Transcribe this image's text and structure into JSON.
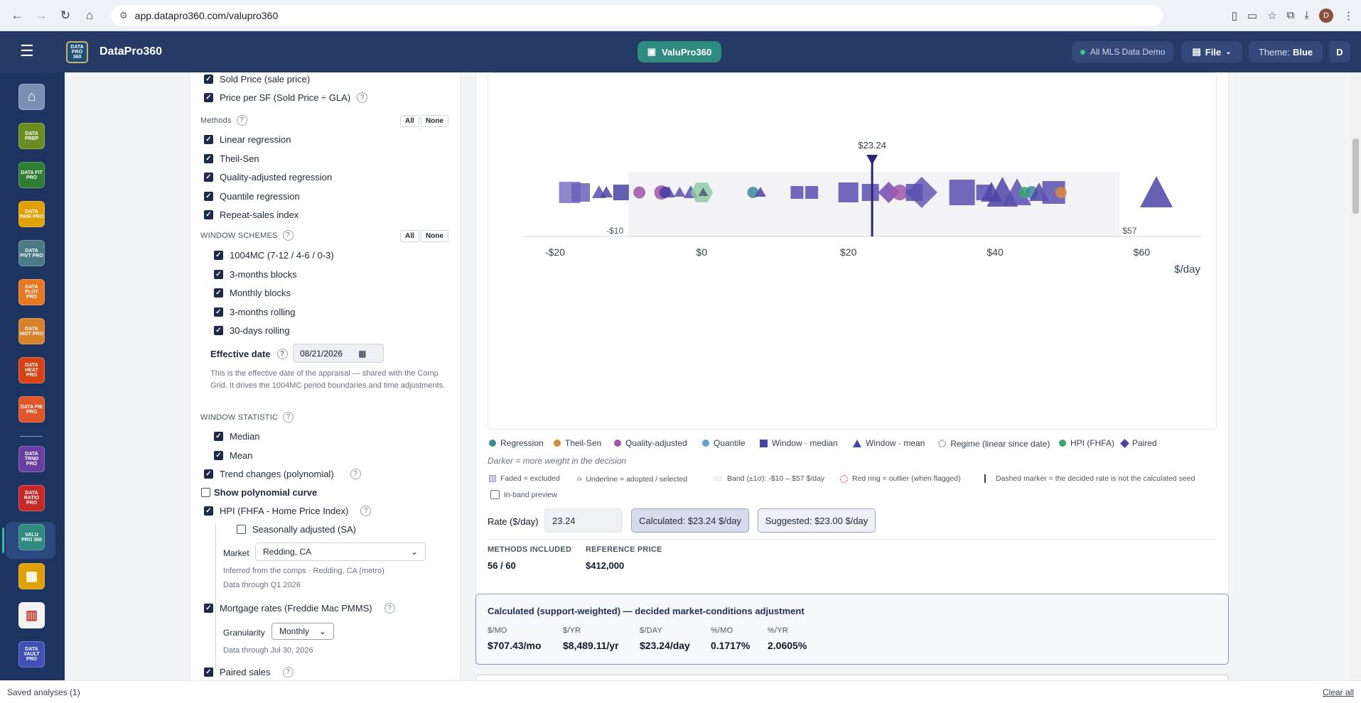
{
  "browser": {
    "url": "app.datapro360.com/valupro360",
    "profile_initial": "D"
  },
  "header": {
    "brand": "DataPro360",
    "logo_text": "DATA PRO 360",
    "center_pill": "ValuPro360",
    "data_source": "All MLS Data Demo",
    "file_label": "File",
    "theme_label": "Theme:",
    "theme_value": "Blue",
    "user_initial": "D"
  },
  "rail": [
    {
      "label": "",
      "icon": "home-icon",
      "color": "#2d6a8a"
    },
    {
      "label": "DATA PREP",
      "color": "#6b8e23"
    },
    {
      "label": "DATA FIT PRO",
      "color": "#2e7d32"
    },
    {
      "label": "DATA PAIR PRO",
      "color": "#e0a000"
    },
    {
      "label": "DATA PIVT PRO",
      "color": "#4a7b84"
    },
    {
      "label": "DATA PLOT PRO",
      "color": "#e87722"
    },
    {
      "label": "DATA HIST PRO",
      "color": "#d9822b"
    },
    {
      "label": "DATA HEAT PRO",
      "color": "#d84315"
    },
    {
      "label": "DATA PIE PRO",
      "color": "#e0562a"
    },
    {
      "label": "DATA TRND PRO",
      "color": "#6a3ea1"
    },
    {
      "label": "DATA RATIO PRO",
      "color": "#c62828"
    },
    {
      "label": "VALU PRO 360",
      "color": "#2f8a7f"
    },
    {
      "label": "",
      "icon": "grid-app-icon",
      "color": "#e0a000"
    },
    {
      "label": "",
      "icon": "report-icon",
      "color": "#c0392b"
    },
    {
      "label": "DATA VAULT PRO",
      "color": "#3f51b5"
    }
  ],
  "left": {
    "top_items": [
      "Sold Price (sale price)",
      "Price per SF (Sold Price ÷ GLA)"
    ],
    "methods_title": "Methods",
    "all_label": "All",
    "none_label": "None",
    "methods": [
      "Linear regression",
      "Theil-Sen",
      "Quality-adjusted regression",
      "Quantile regression",
      "Repeat-sales index"
    ],
    "window_schemes_title": "WINDOW SCHEMES",
    "schemes": [
      "1004MC (7-12 / 4-6 / 0-3)",
      "3-months blocks",
      "Monthly blocks",
      "3-months rolling",
      "30-days rolling"
    ],
    "effective_date_label": "Effective date",
    "effective_date_value": "08/21/2026",
    "effective_note": "This is the effective date of the appraisal — shared with the Comp Grid. It drives the 1004MC period boundaries and time adjustments.",
    "window_statistic_title": "WINDOW STATISTIC",
    "stats": [
      "Median",
      "Mean"
    ],
    "trend_changes": "Trend changes (polynomial)",
    "show_poly": "Show polynomial curve",
    "hpi_label": "HPI (FHFA - Home Price Index)",
    "seasonal_label": "Seasonally adjusted (SA)",
    "market_label": "Market",
    "market_value": "Redding, CA",
    "market_inferred": "Inferred from the comps · Redding, CA (metro)",
    "market_through": "Data through Q1 2026",
    "mortgage_label": "Mortgage rates (Freddie Mac PMMS)",
    "granularity_label": "Granularity",
    "granularity_value": "Monthly",
    "mortgage_through": "Data through Jul 30, 2026",
    "paired_label": "Paired sales"
  },
  "chart_data": {
    "type": "scatter",
    "x_unit_label": "$/day",
    "xlim": [
      -23,
      68
    ],
    "x_ticks": [
      "-$20",
      "$0",
      "$20",
      "$40",
      "$60"
    ],
    "x_tick_values": [
      -20,
      0,
      20,
      40,
      60
    ],
    "band_low": -10,
    "band_high": 57,
    "band_low_label": "-$10",
    "band_high_label": "$57",
    "decided": 23.24,
    "decided_label": "$23.24",
    "points": [
      {
        "x": -18,
        "shape": "square",
        "size": 30,
        "color": "#7b71c4"
      },
      {
        "x": -16.5,
        "shape": "square",
        "size": 26,
        "color": "#6a5fb8"
      },
      {
        "x": -14,
        "shape": "triangle",
        "size": 20,
        "color": "#5a4fb0"
      },
      {
        "x": -13,
        "shape": "triangle",
        "size": 18,
        "color": "#4c44a6"
      },
      {
        "x": -11,
        "shape": "square",
        "size": 22,
        "color": "#4a43a3"
      },
      {
        "x": -8.5,
        "shape": "circle",
        "size": 17,
        "color": "#a055a8"
      },
      {
        "x": -5.5,
        "shape": "circle",
        "size": 20,
        "color": "#a055a8"
      },
      {
        "x": -5,
        "shape": "circle",
        "size": 16,
        "color": "#4b3d9c"
      },
      {
        "x": -4.5,
        "shape": "triangle",
        "size": 18,
        "color": "#4c44a6"
      },
      {
        "x": -3,
        "shape": "triangle",
        "size": 16,
        "color": "#5a4fb0"
      },
      {
        "x": -1.5,
        "shape": "triangle",
        "size": 20,
        "color": "#5a4fb0"
      },
      {
        "x": 0,
        "shape": "hexagon",
        "size": 32,
        "color": "#8cc8a0"
      },
      {
        "x": 0.2,
        "shape": "triangle",
        "size": 14,
        "color": "#4b5a7a"
      },
      {
        "x": 7,
        "shape": "circle",
        "size": 16,
        "color": "#3b8a96"
      },
      {
        "x": 8,
        "shape": "triangle",
        "size": 16,
        "color": "#4c44a6"
      },
      {
        "x": 13,
        "shape": "square",
        "size": 18,
        "color": "#5a4fb0"
      },
      {
        "x": 15,
        "shape": "square",
        "size": 18,
        "color": "#5a4fb0"
      },
      {
        "x": 20,
        "shape": "square",
        "size": 28,
        "color": "#5a4fb0"
      },
      {
        "x": 23,
        "shape": "square",
        "size": 24,
        "color": "#5a4fb0"
      },
      {
        "x": 25.5,
        "shape": "diamond",
        "size": 30,
        "color": "#6a3fa8"
      },
      {
        "x": 27,
        "shape": "circle",
        "size": 22,
        "color": "#a055a8"
      },
      {
        "x": 29,
        "shape": "square",
        "size": 24,
        "color": "#5a4fb0"
      },
      {
        "x": 30,
        "shape": "diamond",
        "size": 44,
        "color": "#5a4fb0"
      },
      {
        "x": 35.5,
        "shape": "square",
        "size": 36,
        "color": "#5a4fb0"
      },
      {
        "x": 38.5,
        "shape": "square",
        "size": 22,
        "color": "#5a4fb0"
      },
      {
        "x": 39.5,
        "shape": "triangle",
        "size": 30,
        "color": "#4c44a6"
      },
      {
        "x": 41,
        "shape": "triangle",
        "size": 44,
        "color": "#4c44a6"
      },
      {
        "x": 43,
        "shape": "triangle",
        "size": 40,
        "color": "#5a4fb0"
      },
      {
        "x": 44,
        "shape": "circle",
        "size": 16,
        "color": "#3aa66a"
      },
      {
        "x": 45,
        "shape": "circle",
        "size": 18,
        "color": "#3b8a96"
      },
      {
        "x": 46,
        "shape": "triangle",
        "size": 28,
        "color": "#4c44a6"
      },
      {
        "x": 48,
        "shape": "square",
        "size": 32,
        "color": "#5a4fb0"
      },
      {
        "x": 49,
        "shape": "circle",
        "size": 16,
        "color": "#d88b3a"
      },
      {
        "x": 62,
        "shape": "triangle",
        "size": 46,
        "color": "#4c44a6"
      }
    ]
  },
  "legend": {
    "items": [
      {
        "label": "Regression",
        "shape": "circle",
        "color": "#3b8a96"
      },
      {
        "label": "Theil-Sen",
        "shape": "circle",
        "color": "#d88b3a"
      },
      {
        "label": "Quality-adjusted",
        "shape": "circle",
        "color": "#a055a8"
      },
      {
        "label": "Quantile",
        "shape": "circle",
        "color": "#5aa3d6"
      },
      {
        "label": "Window · median",
        "shape": "square",
        "color": "#4a43a3"
      },
      {
        "label": "Window · mean",
        "shape": "triangle",
        "color": "#4a43a3"
      },
      {
        "label": "Regime (linear since date)",
        "shape": "pentagon",
        "color": "#6b7280"
      },
      {
        "label": "HPI (FHFA)",
        "shape": "circle",
        "color": "#3aa66a"
      },
      {
        "label": "Paired",
        "shape": "diamond",
        "color": "#4a43a3"
      }
    ],
    "darker_note": "Darker = more weight in the decision",
    "hints": [
      "Faded = excluded",
      "Underline = adopted / selected",
      "Band (±1σ): -$10 – $57 $/day",
      "Red ring = outlier (when flagged)",
      "Dashed marker = the decided rate is not the calculated seed"
    ],
    "in_band_preview": "In-band preview"
  },
  "rate": {
    "label": "Rate ($/day)",
    "value": "23.24",
    "calculated": "Calculated: $23.24 $/day",
    "suggested": "Suggested: $23.00 $/day"
  },
  "stats": {
    "methods_label": "METHODS INCLUDED",
    "methods_value": "56 / 60",
    "ref_label": "REFERENCE PRICE",
    "ref_value": "$412,000"
  },
  "summary": {
    "title": "Calculated (support-weighted) — decided market-conditions adjustment",
    "cols": [
      {
        "label": "$/MO",
        "value": "$707.43/mo"
      },
      {
        "label": "$/YR",
        "value": "$8,489.11/yr"
      },
      {
        "label": "$/DAY",
        "value": "$23.24/day"
      },
      {
        "label": "%/MO",
        "value": "0.1717%"
      },
      {
        "label": "%/YR",
        "value": "2.0605%"
      }
    ]
  },
  "footer": {
    "saved": "Saved analyses (1)",
    "clear": "Clear all"
  }
}
